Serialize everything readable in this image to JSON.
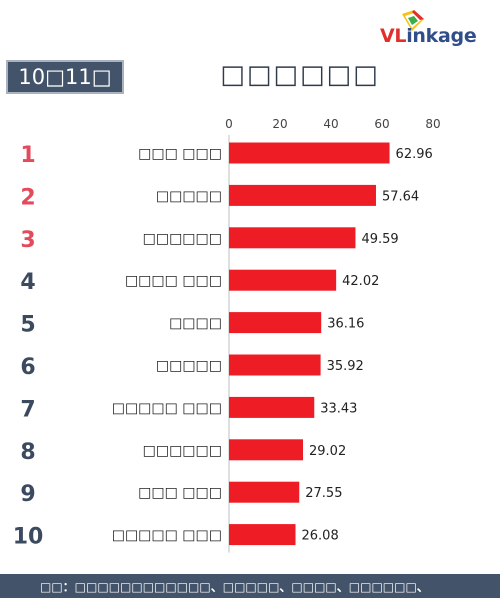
{
  "logo": {
    "brand_prefix": "VL",
    "brand_suffix": "inkage",
    "colors": {
      "prefix": "#e0302b",
      "suffix": "#2f4e8a"
    }
  },
  "date_badge": "10□11□",
  "title": "□□□□□□",
  "footnote": "□□：□□□□□□□□□□□□、□□□□□、□□□□、□□□□□□、",
  "colors": {
    "bar": "#ee1c25",
    "rank_top": "#e34a5c",
    "rank_rest": "#3c4a60",
    "badge": "#43536a"
  },
  "chart_data": {
    "type": "bar",
    "orientation": "horizontal",
    "xlim": [
      0,
      80
    ],
    "xticks": [
      0,
      20,
      40,
      60,
      80
    ],
    "axis_position": "top",
    "grid": false,
    "ranks": [
      1,
      2,
      3,
      4,
      5,
      6,
      7,
      8,
      9,
      10
    ],
    "categories": [
      "□□□ □□□",
      "□□□□□",
      "□□□□□□",
      "□□□□ □□□",
      "□□□□",
      "□□□□□",
      "□□□□□ □□□",
      "□□□□□□",
      "□□□ □□□",
      "□□□□□ □□□"
    ],
    "values": [
      62.96,
      57.64,
      49.59,
      42.02,
      36.16,
      35.92,
      33.43,
      29.02,
      27.55,
      26.08
    ]
  }
}
